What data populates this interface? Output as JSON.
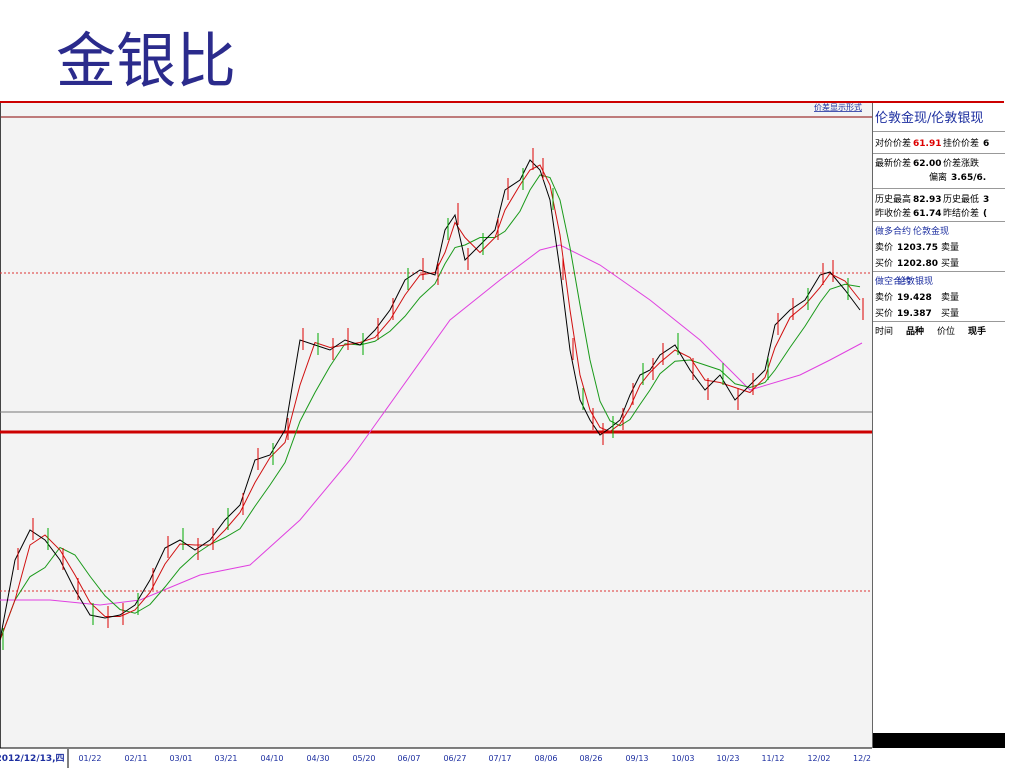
{
  "title": "金银比",
  "chart_panel": {
    "link": "价差显示形式",
    "x_labels": [
      "2012/12/13,四",
      "01/22",
      "02/11",
      "03/01",
      "03/21",
      "04/10",
      "04/30",
      "05/20",
      "06/07",
      "06/27",
      "07/17",
      "08/06",
      "08/26",
      "09/13",
      "10/03",
      "10/23",
      "11/12",
      "12/02",
      "12/2"
    ]
  },
  "side_panel": {
    "header": "伦敦金现/伦敦银现",
    "rows": [
      [
        "对价价差",
        "61.91",
        "挂价价差",
        "6"
      ],
      [
        "最新价差",
        "62.00",
        "价差涨跌"
      ],
      [
        "偏离",
        "3.65/6."
      ],
      [
        "历史最高",
        "82.93",
        "历史最低",
        "3"
      ],
      [
        "昨收价差",
        "61.74",
        "昨结价差",
        "("
      ],
      [
        "做多合约",
        "伦敦金现"
      ],
      [
        "卖价",
        "1203.75",
        "卖量"
      ],
      [
        "买价",
        "1202.80",
        "买量"
      ],
      [
        "做空合约",
        "伦敦银现"
      ],
      [
        "卖价",
        "19.428",
        "卖量"
      ],
      [
        "买价",
        "19.387",
        "买量"
      ],
      [
        "时间",
        "品种",
        "价位",
        "现手"
      ]
    ]
  }
}
